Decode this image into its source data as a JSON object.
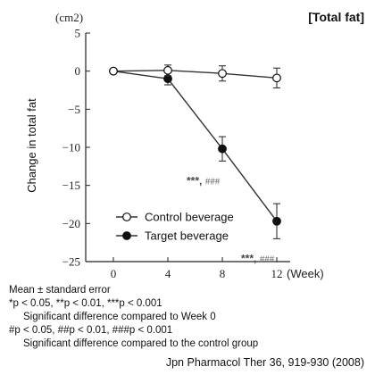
{
  "chart_data": {
    "type": "line",
    "title": "[Total fat]",
    "unit_label": "(cm2)",
    "ylabel": "Change in total fat",
    "xunit": "(Week)",
    "x": [
      0,
      4,
      8,
      12
    ],
    "x_tick_labels": [
      "0",
      "4",
      "8",
      "12"
    ],
    "y_ticks": [
      5,
      0,
      -5,
      -10,
      -15,
      -20,
      -25
    ],
    "y_tick_labels": [
      "5",
      "0",
      "−5",
      "−10",
      "−15",
      "−20",
      "−25"
    ],
    "ylim": [
      -25,
      5
    ],
    "series": [
      {
        "name": "Control beverage",
        "marker": "open-circle",
        "values": [
          0,
          0.1,
          -0.3,
          -0.9
        ],
        "errors": [
          0,
          0.7,
          1.0,
          1.3
        ]
      },
      {
        "name": "Target beverage",
        "marker": "filled-circle",
        "values": [
          0,
          -1.0,
          -10.2,
          -19.7
        ],
        "errors": [
          0,
          0.8,
          1.6,
          2.3
        ]
      }
    ],
    "legend_position": "bottom-left",
    "annotations": [
      {
        "x": 8,
        "main": "***",
        "sep": ",",
        "hash": "###"
      },
      {
        "x": 12,
        "main": "***",
        "sep": ",",
        "hash": "###"
      }
    ],
    "grid": false,
    "colors": {
      "line": "#333333",
      "marker_fill": "#111111",
      "open_fill": "#ffffff"
    }
  },
  "notes": {
    "line1": "Mean ± standard error",
    "line2": "*p < 0.05, **p < 0.01, ***p < 0.001",
    "line3": "Significant difference compared to Week 0",
    "line4": "#p < 0.05, ##p < 0.01, ###p < 0.001",
    "line5": "Significant difference compared to the control group"
  },
  "citation": "Jpn Pharmacol Ther 36, 919-930 (2008)"
}
